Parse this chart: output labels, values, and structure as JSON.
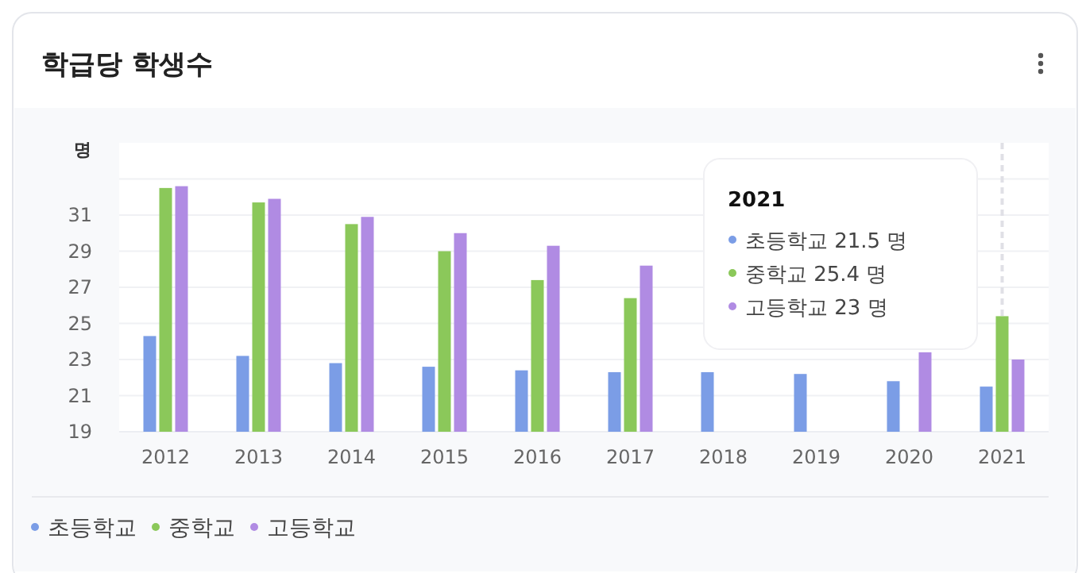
{
  "chart_data": {
    "type": "bar",
    "title": "학급당 학생수",
    "ylabel": "명",
    "categories": [
      "2012",
      "2013",
      "2014",
      "2015",
      "2016",
      "2017",
      "2018",
      "2019",
      "2020",
      "2021"
    ],
    "series": [
      {
        "name": "초등학교",
        "color": "#7b9de6",
        "values": [
          24.3,
          23.2,
          22.8,
          22.6,
          22.4,
          22.3,
          22.3,
          22.2,
          21.8,
          21.5
        ]
      },
      {
        "name": "중학교",
        "color": "#8bc85a",
        "values": [
          32.5,
          31.7,
          30.5,
          29.0,
          27.4,
          26.4,
          null,
          null,
          null,
          25.4
        ]
      },
      {
        "name": "고등학교",
        "color": "#b08be3",
        "values": [
          32.6,
          31.9,
          30.9,
          30.0,
          29.3,
          28.2,
          null,
          null,
          23.4,
          23
        ]
      }
    ],
    "ylim": [
      19,
      35
    ],
    "yticks": [
      19,
      21,
      23,
      25,
      27,
      29,
      31,
      {
        "value": 33,
        "label": null
      }
    ],
    "grid": "y",
    "legend": "bottom left",
    "ref_lines": [
      {
        "axis": "x",
        "value": "2021",
        "color": "#e0e0e6",
        "line_style": "dashed"
      }
    ],
    "annotations": [
      "2021",
      "초등학교 21.5 명",
      "중학교 25.4 명",
      "고등학교 23 명"
    ]
  }
}
